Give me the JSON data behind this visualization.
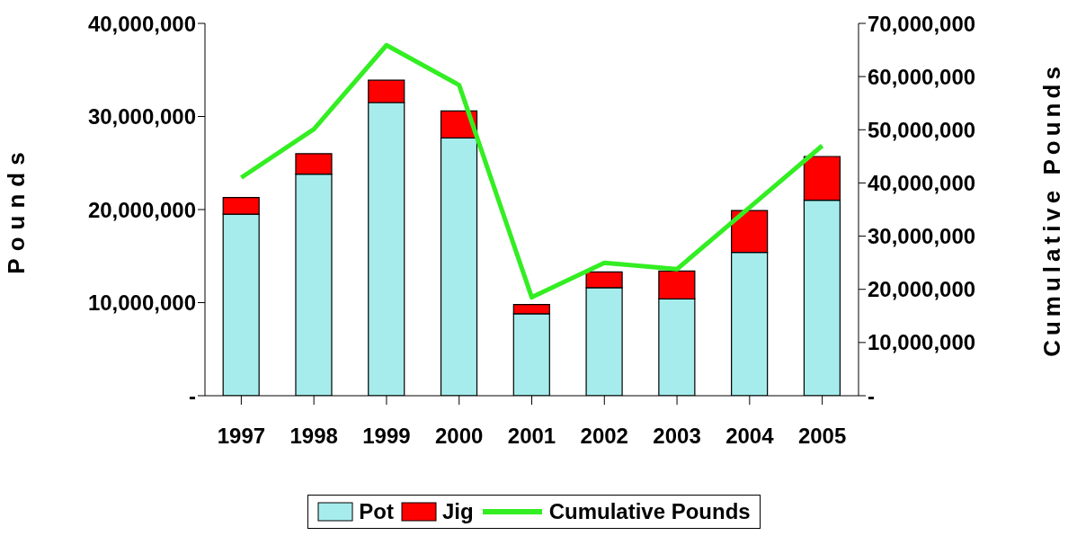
{
  "chart_data": {
    "type": "bar",
    "stacked": true,
    "ylabel": "Pounds",
    "y2label": "Cumulative Pounds",
    "categories": [
      "1997",
      "1998",
      "1999",
      "2000",
      "2001",
      "2002",
      "2003",
      "2004",
      "2005"
    ],
    "series": [
      {
        "name": "Pot",
        "color": "#a6ecec",
        "values": [
          19500000,
          23800000,
          31500000,
          27700000,
          8800000,
          11600000,
          10400000,
          15400000,
          21000000
        ]
      },
      {
        "name": "Jig",
        "color": "#ff0000",
        "values": [
          1800000,
          2200000,
          2400000,
          2900000,
          1000000,
          1700000,
          3000000,
          4500000,
          4700000
        ]
      },
      {
        "name": "Cumulative Pounds",
        "type": "line",
        "axis": "y2",
        "color": "#33ee22",
        "values": [
          41000000,
          50100000,
          65900000,
          58400000,
          18500000,
          25000000,
          23800000,
          35400000,
          47000000
        ]
      }
    ],
    "ylim": [
      0,
      40000000
    ],
    "yticks": [
      {
        "value": 0,
        "label": "-"
      },
      {
        "value": 10000000,
        "label": "10,000,000"
      },
      {
        "value": 20000000,
        "label": "20,000,000"
      },
      {
        "value": 30000000,
        "label": "30,000,000"
      },
      {
        "value": 40000000,
        "label": "40,000,000"
      }
    ],
    "y2lim": [
      0,
      70000000
    ],
    "y2ticks": [
      {
        "value": 0,
        "label": "-"
      },
      {
        "value": 10000000,
        "label": "10,000,000"
      },
      {
        "value": 20000000,
        "label": "20,000,000"
      },
      {
        "value": 30000000,
        "label": "30,000,000"
      },
      {
        "value": 40000000,
        "label": "40,000,000"
      },
      {
        "value": 50000000,
        "label": "50,000,000"
      },
      {
        "value": 60000000,
        "label": "60,000,000"
      },
      {
        "value": 70000000,
        "label": "70,000,000"
      }
    ],
    "grid": false,
    "legend": "bottom",
    "marker": "none",
    "line_style": "solid"
  }
}
